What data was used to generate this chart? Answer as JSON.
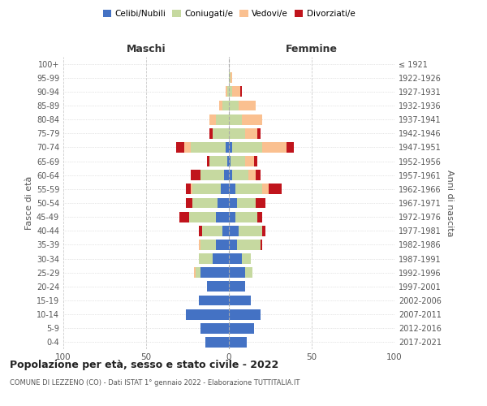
{
  "age_groups": [
    "0-4",
    "5-9",
    "10-14",
    "15-19",
    "20-24",
    "25-29",
    "30-34",
    "35-39",
    "40-44",
    "45-49",
    "50-54",
    "55-59",
    "60-64",
    "65-69",
    "70-74",
    "75-79",
    "80-84",
    "85-89",
    "90-94",
    "95-99",
    "100+"
  ],
  "birth_years": [
    "2017-2021",
    "2012-2016",
    "2007-2011",
    "2002-2006",
    "1997-2001",
    "1992-1996",
    "1987-1991",
    "1982-1986",
    "1977-1981",
    "1972-1976",
    "1967-1971",
    "1962-1966",
    "1957-1961",
    "1952-1956",
    "1947-1951",
    "1942-1946",
    "1937-1941",
    "1932-1936",
    "1927-1931",
    "1922-1926",
    "≤ 1921"
  ],
  "male": {
    "celibi": [
      14,
      17,
      26,
      18,
      13,
      17,
      10,
      8,
      4,
      8,
      7,
      5,
      3,
      1,
      2,
      0,
      0,
      0,
      0,
      0,
      0
    ],
    "coniugati": [
      0,
      0,
      0,
      0,
      0,
      3,
      8,
      9,
      12,
      16,
      15,
      17,
      14,
      11,
      21,
      10,
      8,
      4,
      1,
      0,
      0
    ],
    "vedovi": [
      0,
      0,
      0,
      0,
      0,
      1,
      0,
      1,
      0,
      0,
      0,
      1,
      0,
      0,
      4,
      0,
      4,
      2,
      1,
      0,
      0
    ],
    "divorziati": [
      0,
      0,
      0,
      0,
      0,
      0,
      0,
      0,
      2,
      6,
      4,
      3,
      6,
      1,
      5,
      2,
      0,
      0,
      0,
      0,
      0
    ]
  },
  "female": {
    "nubili": [
      11,
      15,
      19,
      13,
      10,
      10,
      8,
      5,
      6,
      4,
      5,
      4,
      2,
      1,
      2,
      0,
      0,
      0,
      0,
      0,
      0
    ],
    "coniugate": [
      0,
      0,
      0,
      0,
      0,
      4,
      5,
      14,
      14,
      13,
      11,
      16,
      10,
      9,
      18,
      10,
      8,
      6,
      2,
      1,
      0
    ],
    "vedove": [
      0,
      0,
      0,
      0,
      0,
      0,
      0,
      0,
      0,
      0,
      0,
      4,
      4,
      5,
      15,
      7,
      12,
      10,
      5,
      1,
      0
    ],
    "divorziate": [
      0,
      0,
      0,
      0,
      0,
      0,
      0,
      1,
      2,
      3,
      6,
      8,
      3,
      2,
      4,
      2,
      0,
      0,
      1,
      0,
      0
    ]
  },
  "colors": {
    "celibi": "#4472C4",
    "coniugati": "#C6D9A0",
    "vedovi": "#FAC090",
    "divorziati": "#C0141C"
  },
  "title": "Popolazione per età, sesso e stato civile - 2022",
  "subtitle": "COMUNE DI LEZZENO (CO) - Dati ISTAT 1° gennaio 2022 - Elaborazione TUTTITALIA.IT",
  "xlabel_left": "Maschi",
  "xlabel_right": "Femmine",
  "ylabel_left": "Fasce di età",
  "ylabel_right": "Anni di nascita",
  "xlim": 100,
  "bg_color": "#ffffff",
  "grid_color": "#cccccc",
  "bar_height": 0.75
}
